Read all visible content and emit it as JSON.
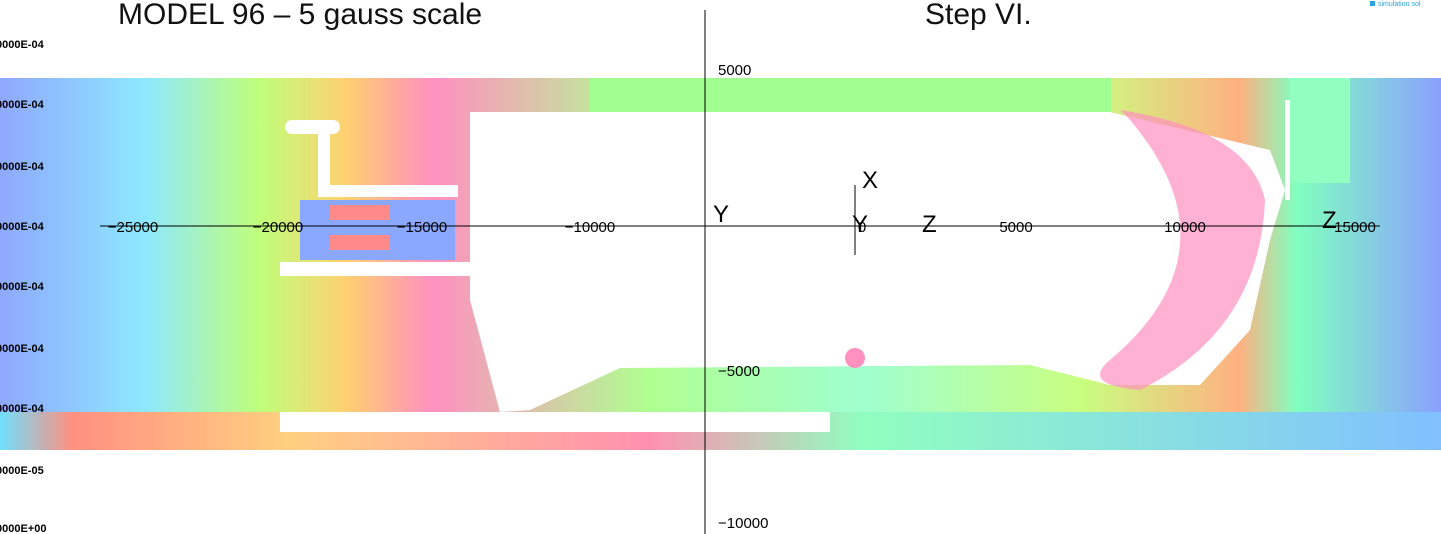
{
  "header": {
    "title": "MODEL 96 – 5 gauss scale",
    "step": "Step VI.",
    "logo": "simulation sol"
  },
  "legend": {
    "labels": [
      "0000E-04",
      "0000E-04",
      "0000E-04",
      "0000E-04",
      "0000E-04",
      "0000E-04",
      "0000E-04",
      "0000E-05",
      "0000E+00"
    ]
  },
  "axes": {
    "horizontal_ticks": [
      "−25000",
      "−20000",
      "−15000",
      "−10000",
      "0",
      "5000",
      "10000",
      "15000"
    ],
    "vertical_ticks": [
      "5000",
      "−5000",
      "−10000"
    ],
    "labels": [
      "Y",
      "X",
      "Y",
      "Z",
      "Z"
    ]
  }
}
